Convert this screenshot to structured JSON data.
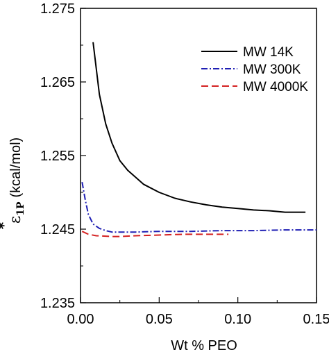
{
  "chart_data": {
    "type": "line",
    "title": "",
    "xlabel": "Wt % PEO",
    "ylabel": {
      "symbol": "ε",
      "star": "*",
      "subscript": "1P",
      "unit": "(kcal/mol)"
    },
    "xlim": [
      0.0,
      0.15
    ],
    "ylim": [
      1.235,
      1.275
    ],
    "x_ticks": [
      0.0,
      0.05,
      0.1,
      0.15
    ],
    "x_tick_labels": [
      "0.00",
      "0.05",
      "0.10",
      "0.15"
    ],
    "y_ticks": [
      1.235,
      1.245,
      1.255,
      1.265,
      1.275
    ],
    "y_tick_labels": [
      "1.235",
      "1.245",
      "1.255",
      "1.265",
      "1.275"
    ],
    "grid": false,
    "legend_position": "top-right",
    "series": [
      {
        "name": "MW 14K",
        "color": "#000000",
        "style": "solid",
        "x": [
          0.008,
          0.012,
          0.016,
          0.02,
          0.025,
          0.03,
          0.04,
          0.05,
          0.06,
          0.07,
          0.08,
          0.09,
          0.1,
          0.11,
          0.12,
          0.13,
          0.143
        ],
        "y": [
          1.2704,
          1.2633,
          1.2593,
          1.2567,
          1.2543,
          1.253,
          1.2511,
          1.25,
          1.2492,
          1.2487,
          1.2483,
          1.248,
          1.2478,
          1.2476,
          1.2475,
          1.2473,
          1.2473
        ]
      },
      {
        "name": "MW 300K",
        "color": "#1f1fb4",
        "style": "dashdot",
        "x": [
          0.001,
          0.003,
          0.005,
          0.008,
          0.012,
          0.016,
          0.02,
          0.025,
          0.035,
          0.05,
          0.07,
          0.09,
          0.11,
          0.13,
          0.15
        ],
        "y": [
          1.2514,
          1.249,
          1.247,
          1.2457,
          1.2451,
          1.2448,
          1.2446,
          1.2446,
          1.2446,
          1.2447,
          1.2447,
          1.2448,
          1.2448,
          1.2449,
          1.2449
        ]
      },
      {
        "name": "MW 4000K",
        "color": "#d42020",
        "style": "dashed",
        "x": [
          0.001,
          0.005,
          0.01,
          0.02,
          0.025,
          0.035,
          0.05,
          0.065,
          0.08,
          0.094
        ],
        "y": [
          1.2447,
          1.2443,
          1.2441,
          1.244,
          1.244,
          1.2441,
          1.2442,
          1.2443,
          1.2443,
          1.2443
        ]
      }
    ]
  }
}
